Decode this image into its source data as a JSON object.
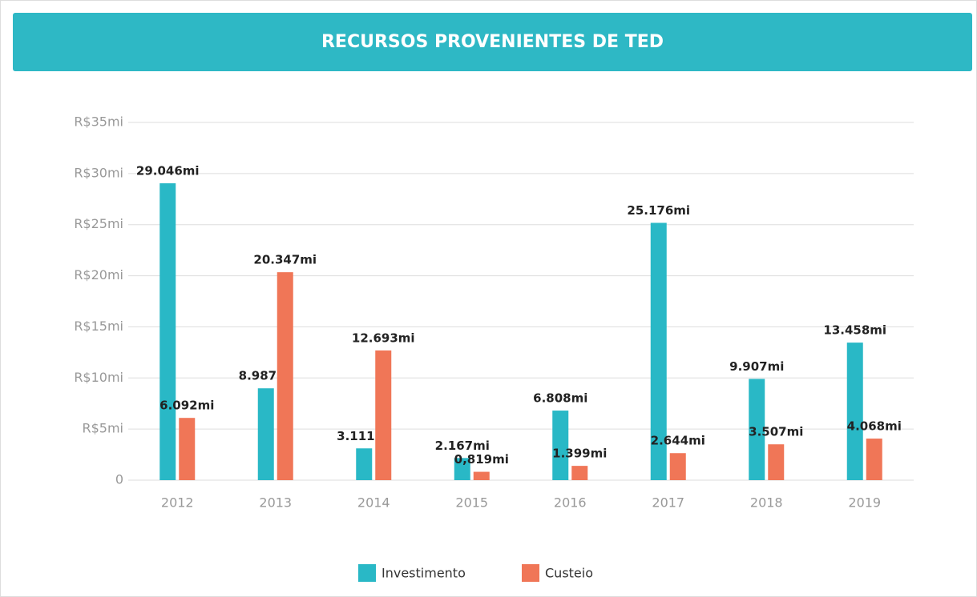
{
  "title": "RECURSOS PROVENIENTES DE TED",
  "chart_data": {
    "type": "bar",
    "categories": [
      "2012",
      "2013",
      "2014",
      "2015",
      "2016",
      "2017",
      "2018",
      "2019"
    ],
    "series": [
      {
        "name": "Investimento",
        "color": "#29b8c6",
        "values": [
          29.046,
          8.987,
          3.111,
          2.167,
          6.808,
          25.176,
          9.907,
          13.458
        ],
        "value_labels": [
          "29.046mi",
          "8.987mi",
          "3.111mi",
          "2.167mi",
          "6.808mi",
          "25.176mi",
          "9.907mi",
          "13.458mi"
        ]
      },
      {
        "name": "Custeio",
        "color": "#f07657",
        "values": [
          6.092,
          20.347,
          12.693,
          0.819,
          1.399,
          2.644,
          3.507,
          4.068
        ],
        "value_labels": [
          "6.092mi",
          "20.347mi",
          "12.693mi",
          "0,819mi",
          "1.399mi",
          "2.644mi",
          "3.507mi",
          "4.068mi"
        ]
      }
    ],
    "ylim": [
      0,
      35
    ],
    "yticks": [
      0,
      {
        "value": 5,
        "label": "R$5mi"
      },
      {
        "value": 10,
        "label": "R$10mi"
      },
      {
        "value": 15,
        "label": "R$15mi"
      },
      {
        "value": 20,
        "label": "R$20mi"
      },
      {
        "value": 25,
        "label": "R$25mi"
      },
      {
        "value": 30,
        "label": "R$30mi"
      },
      {
        "value": 35,
        "label": "R$35mi"
      }
    ],
    "grid": true,
    "legend": "bottom"
  }
}
